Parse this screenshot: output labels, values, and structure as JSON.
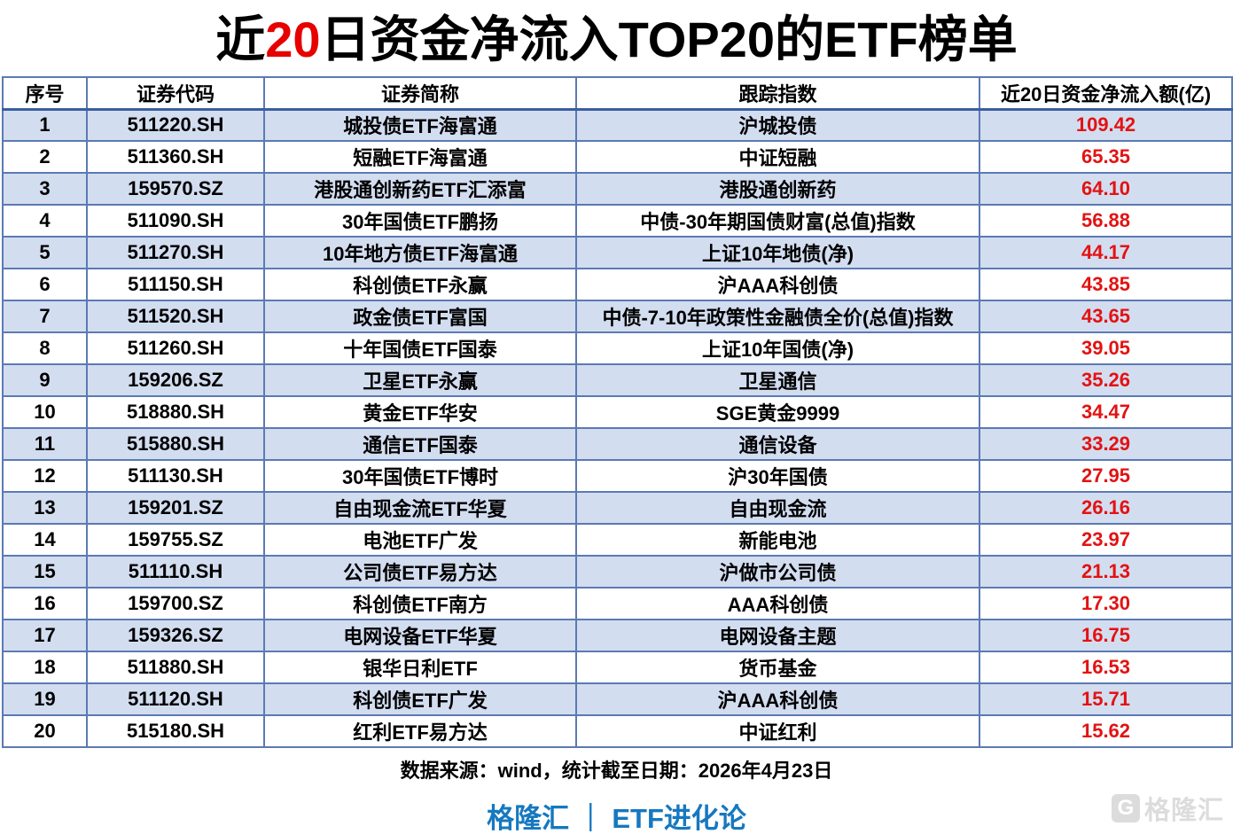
{
  "title": {
    "part1": "近",
    "highlight": "20",
    "part2": "日资金净流入TOP20的ETF榜单"
  },
  "table": {
    "headers": [
      "序号",
      "证券代码",
      "证券简称",
      "跟踪指数",
      "近20日资金净流入额(亿)"
    ],
    "rows": [
      {
        "rank": "1",
        "code": "511220.SH",
        "name": "城投债ETF海富通",
        "index": "沪城投债",
        "inflow": "109.42"
      },
      {
        "rank": "2",
        "code": "511360.SH",
        "name": "短融ETF海富通",
        "index": "中证短融",
        "inflow": "65.35"
      },
      {
        "rank": "3",
        "code": "159570.SZ",
        "name": "港股通创新药ETF汇添富",
        "index": "港股通创新药",
        "inflow": "64.10"
      },
      {
        "rank": "4",
        "code": "511090.SH",
        "name": "30年国债ETF鹏扬",
        "index": "中债-30年期国债财富(总值)指数",
        "inflow": "56.88"
      },
      {
        "rank": "5",
        "code": "511270.SH",
        "name": "10年地方债ETF海富通",
        "index": "上证10年地债(净)",
        "inflow": "44.17"
      },
      {
        "rank": "6",
        "code": "511150.SH",
        "name": "科创债ETF永赢",
        "index": "沪AAA科创债",
        "inflow": "43.85"
      },
      {
        "rank": "7",
        "code": "511520.SH",
        "name": "政金债ETF富国",
        "index": "中债-7-10年政策性金融债全价(总值)指数",
        "inflow": "43.65"
      },
      {
        "rank": "8",
        "code": "511260.SH",
        "name": "十年国债ETF国泰",
        "index": "上证10年国债(净)",
        "inflow": "39.05"
      },
      {
        "rank": "9",
        "code": "159206.SZ",
        "name": "卫星ETF永赢",
        "index": "卫星通信",
        "inflow": "35.26"
      },
      {
        "rank": "10",
        "code": "518880.SH",
        "name": "黄金ETF华安",
        "index": "SGE黄金9999",
        "inflow": "34.47"
      },
      {
        "rank": "11",
        "code": "515880.SH",
        "name": "通信ETF国泰",
        "index": "通信设备",
        "inflow": "33.29"
      },
      {
        "rank": "12",
        "code": "511130.SH",
        "name": "30年国债ETF博时",
        "index": "沪30年国债",
        "inflow": "27.95"
      },
      {
        "rank": "13",
        "code": "159201.SZ",
        "name": "自由现金流ETF华夏",
        "index": "自由现金流",
        "inflow": "26.16"
      },
      {
        "rank": "14",
        "code": "159755.SZ",
        "name": "电池ETF广发",
        "index": "新能电池",
        "inflow": "23.97"
      },
      {
        "rank": "15",
        "code": "511110.SH",
        "name": "公司债ETF易方达",
        "index": "沪做市公司债",
        "inflow": "21.13"
      },
      {
        "rank": "16",
        "code": "159700.SZ",
        "name": "科创债ETF南方",
        "index": "AAA科创债",
        "inflow": "17.30"
      },
      {
        "rank": "17",
        "code": "159326.SZ",
        "name": "电网设备ETF华夏",
        "index": "电网设备主题",
        "inflow": "16.75"
      },
      {
        "rank": "18",
        "code": "511880.SH",
        "name": "银华日利ETF",
        "index": "货币基金",
        "inflow": "16.53"
      },
      {
        "rank": "19",
        "code": "511120.SH",
        "name": "科创债ETF广发",
        "index": "沪AAA科创债",
        "inflow": "15.71"
      },
      {
        "rank": "20",
        "code": "515180.SH",
        "name": "红利ETF易方达",
        "index": "中证红利",
        "inflow": "15.62"
      }
    ]
  },
  "footer": {
    "source": "数据来源：wind，统计截至日期：2026年4月23日",
    "brand": "格隆汇 ｜ ETF进化论"
  },
  "watermark": {
    "logo_letter": "G",
    "text": "格隆汇"
  },
  "colors": {
    "title_highlight_red": "#e60000",
    "value_red": "#e31212",
    "row_alt_blue": "#d3ddf0",
    "table_border_blue": "#5b7ab2",
    "brand_blue": "#1678bf",
    "watermark_gray": "#dcdcdc"
  }
}
